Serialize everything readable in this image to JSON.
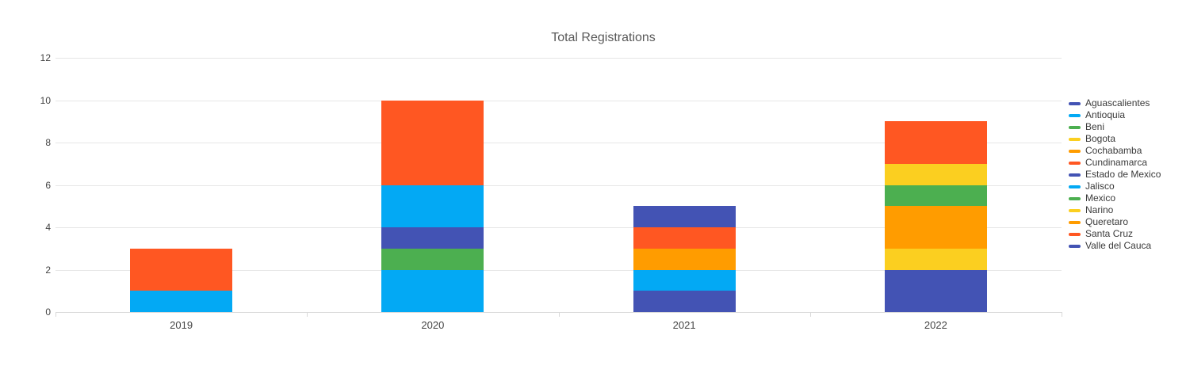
{
  "chart_data": {
    "type": "bar",
    "stacked": true,
    "title": "Total Registrations",
    "xlabel": "",
    "ylabel": "",
    "categories": [
      "2019",
      "2020",
      "2021",
      "2022"
    ],
    "series": [
      {
        "name": "Aguascalientes",
        "color": "#4353B4",
        "values": [
          0,
          0,
          1,
          2
        ]
      },
      {
        "name": "Antioquia",
        "color": "#03A9F4",
        "values": [
          1,
          2,
          0,
          0
        ]
      },
      {
        "name": "Beni",
        "color": "#4CAF50",
        "values": [
          0,
          1,
          0,
          0
        ]
      },
      {
        "name": "Bogota",
        "color": "#FBCF20",
        "values": [
          0,
          0,
          0,
          1
        ]
      },
      {
        "name": "Cochabamba",
        "color": "#FF9C00",
        "values": [
          0,
          0,
          0,
          2
        ]
      },
      {
        "name": "Cundinamarca",
        "color": "#FF5722",
        "values": [
          2,
          0,
          0,
          0
        ]
      },
      {
        "name": "Estado de Mexico",
        "color": "#4353B4",
        "values": [
          0,
          1,
          0,
          0
        ]
      },
      {
        "name": "Jalisco",
        "color": "#03A9F4",
        "values": [
          0,
          2,
          1,
          0
        ]
      },
      {
        "name": "Mexico",
        "color": "#4CAF50",
        "values": [
          0,
          0,
          0,
          1
        ]
      },
      {
        "name": "Narino",
        "color": "#FBCF20",
        "values": [
          0,
          0,
          0,
          1
        ]
      },
      {
        "name": "Queretaro",
        "color": "#FF9C00",
        "values": [
          0,
          0,
          1,
          0
        ]
      },
      {
        "name": "Santa Cruz",
        "color": "#FF5722",
        "values": [
          0,
          4,
          1,
          2
        ]
      },
      {
        "name": "Valle del Cauca",
        "color": "#4353B4",
        "values": [
          0,
          0,
          1,
          0
        ]
      }
    ],
    "totals": [
      3,
      10,
      5,
      9
    ],
    "yticks": [
      0,
      2,
      4,
      6,
      8,
      10,
      12
    ],
    "ylim": [
      0,
      12
    ],
    "grid": true,
    "legend_position": "right",
    "colors": {
      "grid": "#E6E6E6",
      "axis": "#D9D9D9",
      "tick_label": "#434343",
      "title": "#595959",
      "legend_text": "#3A3A3A",
      "background": "#FFFFFF"
    }
  }
}
